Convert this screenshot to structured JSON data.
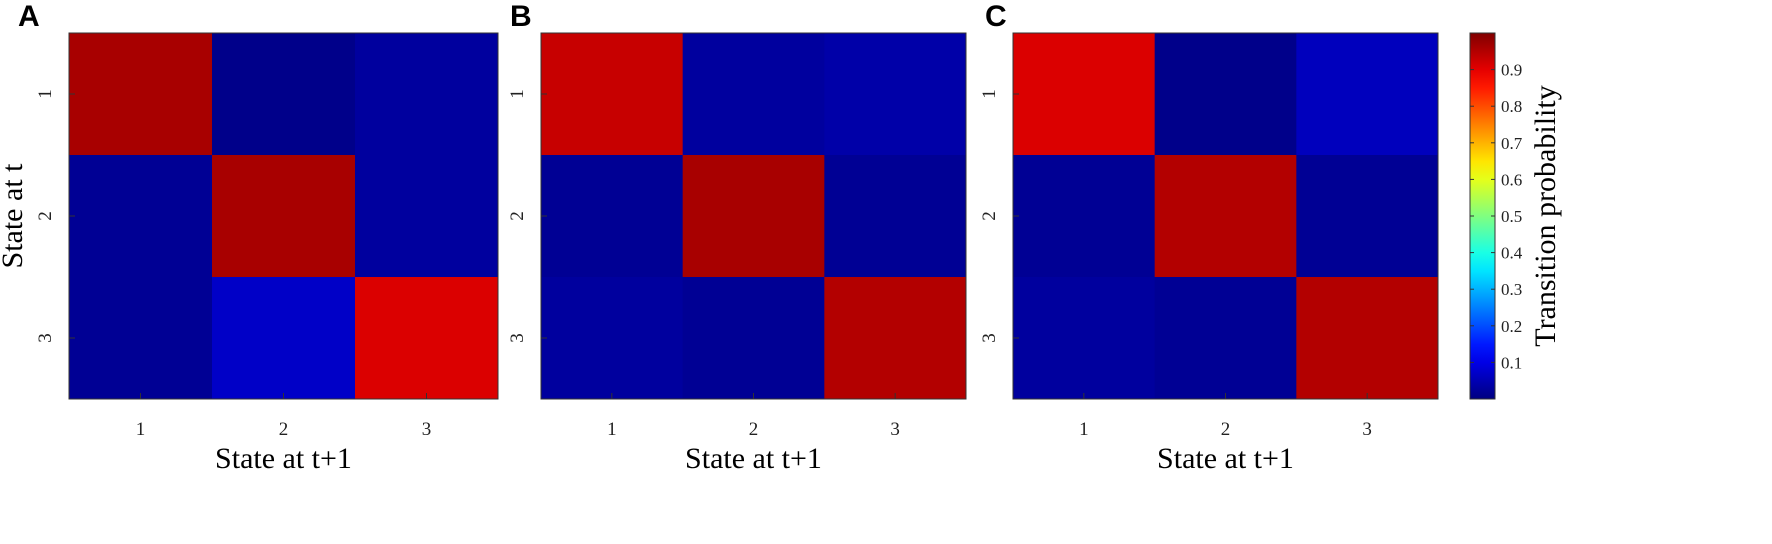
{
  "chart_data": [
    {
      "type": "heatmap",
      "panel_label": "A",
      "x_categories": [
        "1",
        "2",
        "3"
      ],
      "y_categories": [
        "1",
        "2",
        "3"
      ],
      "xlabel": "State at t+1",
      "ylabel": "State at t",
      "matrix": [
        [
          0.96,
          0.01,
          0.03
        ],
        [
          0.02,
          0.96,
          0.03
        ],
        [
          0.02,
          0.07,
          0.91
        ]
      ]
    },
    {
      "type": "heatmap",
      "panel_label": "B",
      "x_categories": [
        "1",
        "2",
        "3"
      ],
      "y_categories": [
        "1",
        "2",
        "3"
      ],
      "xlabel": "State at t+1",
      "ylabel": "",
      "matrix": [
        [
          0.93,
          0.03,
          0.04
        ],
        [
          0.02,
          0.96,
          0.02
        ],
        [
          0.03,
          0.02,
          0.95
        ]
      ]
    },
    {
      "type": "heatmap",
      "panel_label": "C",
      "x_categories": [
        "1",
        "2",
        "3"
      ],
      "y_categories": [
        "1",
        "2",
        "3"
      ],
      "xlabel": "State at t+1",
      "ylabel": "",
      "matrix": [
        [
          0.91,
          0.01,
          0.06
        ],
        [
          0.02,
          0.95,
          0.02
        ],
        [
          0.03,
          0.02,
          0.95
        ]
      ]
    }
  ],
  "colorbar": {
    "label": "Transition probability",
    "ticks": [
      "0.1",
      "0.2",
      "0.3",
      "0.4",
      "0.5",
      "0.6",
      "0.7",
      "0.8",
      "0.9"
    ],
    "range": [
      0,
      1
    ],
    "colormap": "jet"
  }
}
